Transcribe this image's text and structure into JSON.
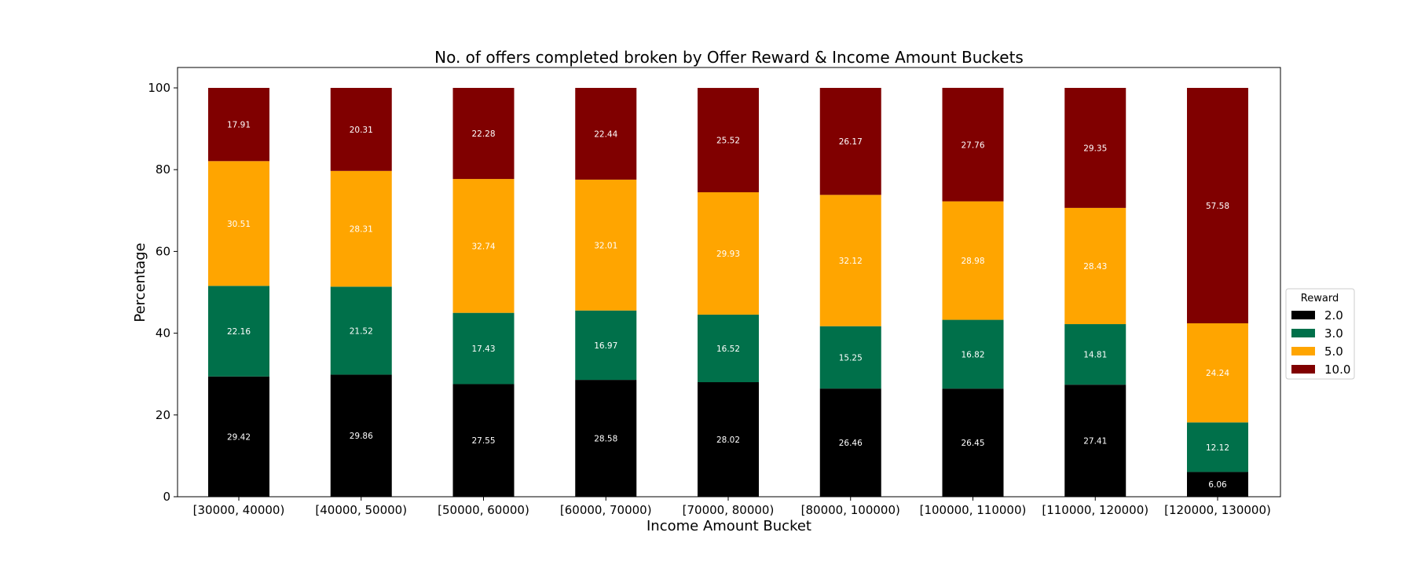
{
  "chart_data": {
    "type": "bar",
    "stacked": true,
    "title": "No. of offers completed broken by Offer Reward & Income Amount Buckets",
    "xlabel": "Income Amount Bucket",
    "ylabel": "Percentage",
    "ylim": [
      0,
      100
    ],
    "yticks": [
      "0",
      "20",
      "40",
      "60",
      "80",
      "100"
    ],
    "grid": false,
    "legend_position": "center-right",
    "legend_title": "Reward",
    "categories": [
      "[30000, 40000)",
      "[40000, 50000)",
      "[50000, 60000)",
      "[60000, 70000)",
      "[70000, 80000)",
      "[80000, 100000)",
      "[100000, 110000)",
      "[110000, 120000)",
      "[120000, 130000)"
    ],
    "series": [
      {
        "name": "2.0",
        "color": "#000000",
        "values": [
          29.42,
          29.86,
          27.55,
          28.58,
          28.02,
          26.46,
          26.45,
          27.41,
          6.06
        ]
      },
      {
        "name": "3.0",
        "color": "#00704a",
        "values": [
          22.16,
          21.52,
          17.43,
          16.97,
          16.52,
          15.25,
          16.82,
          14.81,
          12.12
        ]
      },
      {
        "name": "5.0",
        "color": "#ffa500",
        "values": [
          30.51,
          28.31,
          32.74,
          32.01,
          29.93,
          32.12,
          28.98,
          28.43,
          24.24
        ]
      },
      {
        "name": "10.0",
        "color": "#800000",
        "values": [
          17.91,
          20.31,
          22.28,
          22.44,
          25.52,
          26.17,
          27.76,
          29.35,
          57.58
        ]
      }
    ]
  }
}
